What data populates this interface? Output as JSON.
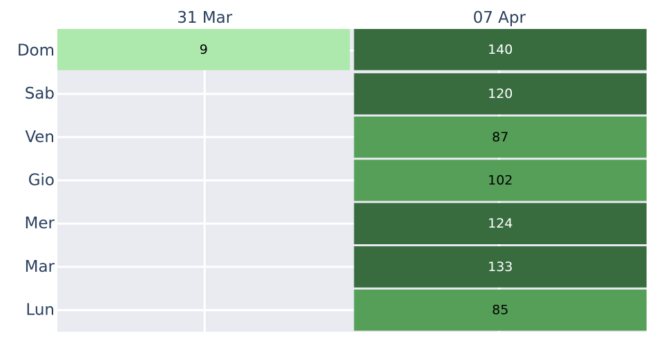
{
  "chart_data": {
    "type": "heatmap",
    "title": "",
    "xlabel": "",
    "ylabel": "",
    "x_categories": [
      "31 Mar",
      "07 Apr"
    ],
    "y_categories": [
      "Dom",
      "Sab",
      "Ven",
      "Gio",
      "Mer",
      "Mar",
      "Lun"
    ],
    "cells": [
      {
        "x": "31 Mar",
        "y": "Dom",
        "value": 9,
        "color": "#ade8ad",
        "text_color": "#000000"
      },
      {
        "x": "07 Apr",
        "y": "Dom",
        "value": 140,
        "color": "#386c3f",
        "text_color": "#ffffff"
      },
      {
        "x": "07 Apr",
        "y": "Sab",
        "value": 120,
        "color": "#386c3f",
        "text_color": "#ffffff"
      },
      {
        "x": "07 Apr",
        "y": "Ven",
        "value": 87,
        "color": "#569f59",
        "text_color": "#000000"
      },
      {
        "x": "07 Apr",
        "y": "Gio",
        "value": 102,
        "color": "#569f59",
        "text_color": "#000000"
      },
      {
        "x": "07 Apr",
        "y": "Mer",
        "value": 124,
        "color": "#386c3f",
        "text_color": "#ffffff"
      },
      {
        "x": "07 Apr",
        "y": "Mar",
        "value": 133,
        "color": "#386c3f",
        "text_color": "#ffffff"
      },
      {
        "x": "07 Apr",
        "y": "Lun",
        "value": 85,
        "color": "#569f59",
        "text_color": "#000000"
      }
    ],
    "background_color": "#e9ebf1",
    "grid": true,
    "legend": false
  }
}
